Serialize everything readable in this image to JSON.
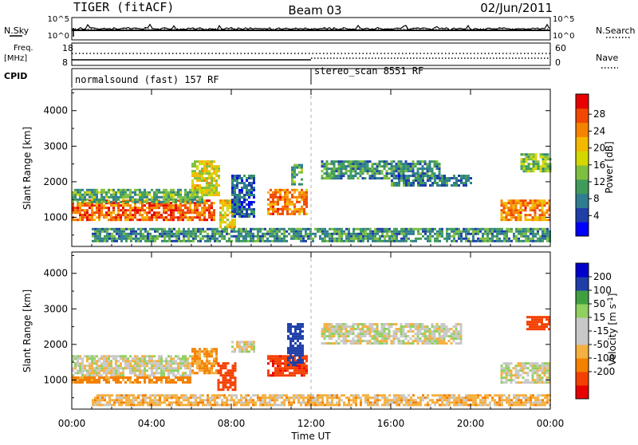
{
  "header": {
    "radar": "TIGER (fitACF)",
    "beam": "Beam 03",
    "date": "02/Jun/2011"
  },
  "status": {
    "nsky_label": "N.Sky",
    "nsky_ticks": [
      "10^5",
      "10^0"
    ],
    "nsearch_label": "N.Search",
    "nsearch_ticks": [
      "10^5",
      "10^0"
    ],
    "freq_label": "Freq.",
    "freq_unit": "[MHz]",
    "freq_ticks": [
      "18",
      "8"
    ],
    "nave_label": "Nave",
    "nave_ticks": [
      "60",
      "0"
    ],
    "cpid_label": "CPID",
    "cpid_segments": [
      {
        "label": "normalsound (fast) 157 RF",
        "start_ut": 0
      },
      {
        "label": "stereo_scan 8551 RF",
        "start_ut": 12
      }
    ]
  },
  "chart_data": [
    {
      "type": "heatmap",
      "name": "power",
      "ylabel": "Slant Range [km]",
      "xlabel": "Time UT",
      "x_ticks": [
        "00:00",
        "04:00",
        "08:00",
        "12:00",
        "16:00",
        "20:00",
        "00:00"
      ],
      "x_range_ut_hours": [
        0,
        24
      ],
      "y_ticks": [
        1000,
        2000,
        3000,
        4000
      ],
      "y_range_km": [
        180,
        4600
      ],
      "colorbar": {
        "label": "Power [dB]",
        "ticks": [
          "28",
          "24",
          "20",
          "16",
          "12",
          "8",
          "4"
        ],
        "colors": [
          "#0000ff",
          "#1f3ea8",
          "#2f7d8f",
          "#3f9c5a",
          "#7fbf3f",
          "#d4d800",
          "#f4b800",
          "#f48400",
          "#f04800",
          "#e80000"
        ]
      },
      "regions": [
        {
          "t0": 0.0,
          "t1": 7.2,
          "r0": 900,
          "r1": 1500,
          "level": 28
        },
        {
          "t0": 0.0,
          "t1": 6.5,
          "r0": 1450,
          "r1": 1800,
          "level": 14
        },
        {
          "t0": 6.0,
          "t1": 7.4,
          "r0": 1600,
          "r1": 2600,
          "level": 20
        },
        {
          "t0": 7.4,
          "t1": 8.2,
          "r0": 700,
          "r1": 1500,
          "level": 22
        },
        {
          "t0": 8.0,
          "t1": 9.2,
          "r0": 1000,
          "r1": 2200,
          "level": 8
        },
        {
          "t0": 9.8,
          "t1": 11.8,
          "r0": 1100,
          "r1": 1800,
          "level": 26
        },
        {
          "t0": 11.0,
          "t1": 11.6,
          "r0": 1900,
          "r1": 2500,
          "level": 14
        },
        {
          "t0": 12.5,
          "t1": 18.5,
          "r0": 2100,
          "r1": 2600,
          "level": 12
        },
        {
          "t0": 16.0,
          "t1": 20.0,
          "r0": 1900,
          "r1": 2200,
          "level": 10
        },
        {
          "t0": 21.5,
          "t1": 24.0,
          "r0": 900,
          "r1": 1500,
          "level": 26
        },
        {
          "t0": 22.5,
          "t1": 24.0,
          "r0": 2300,
          "r1": 2800,
          "level": 16
        },
        {
          "t0": 1.0,
          "t1": 24.0,
          "r0": 300,
          "r1": 700,
          "level": 12
        }
      ]
    },
    {
      "type": "heatmap",
      "name": "velocity",
      "ylabel": "Slant Range [km]",
      "xlabel": "Time UT",
      "x_ticks": [
        "00:00",
        "04:00",
        "08:00",
        "12:00",
        "16:00",
        "20:00",
        "00:00"
      ],
      "x_range_ut_hours": [
        0,
        24
      ],
      "y_ticks": [
        1000,
        2000,
        3000,
        4000
      ],
      "y_range_km": [
        180,
        4600
      ],
      "colorbar": {
        "label": "Velocity [m s",
        "label_sup": "-1",
        "ticks": [
          "200",
          "100",
          "50",
          "15",
          "-15",
          "-50",
          "-100",
          "-200"
        ],
        "colors": [
          "#e80000",
          "#f44000",
          "#f48000",
          "#f4b040",
          "#c8c8c8",
          "#c8c8c8",
          "#8fd060",
          "#3fa03f",
          "#1f3ea8",
          "#0000cc"
        ]
      },
      "regions": [
        {
          "t0": 0.0,
          "t1": 6.0,
          "r0": 1100,
          "r1": 1700,
          "level": 0
        },
        {
          "t0": 0.0,
          "t1": 6.0,
          "r0": 900,
          "r1": 1100,
          "level": -70
        },
        {
          "t0": 6.0,
          "t1": 7.3,
          "r0": 1200,
          "r1": 1900,
          "level": -60
        },
        {
          "t0": 7.3,
          "t1": 8.2,
          "r0": 700,
          "r1": 1500,
          "level": -150
        },
        {
          "t0": 8.0,
          "t1": 9.2,
          "r0": 1800,
          "r1": 2100,
          "level": 0
        },
        {
          "t0": 9.8,
          "t1": 11.8,
          "r0": 1100,
          "r1": 1700,
          "level": -180
        },
        {
          "t0": 10.8,
          "t1": 11.6,
          "r0": 1400,
          "r1": 2600,
          "level": 150
        },
        {
          "t0": 12.5,
          "t1": 19.5,
          "r0": 2000,
          "r1": 2600,
          "level": 0
        },
        {
          "t0": 21.5,
          "t1": 24.0,
          "r0": 900,
          "r1": 1500,
          "level": 0
        },
        {
          "t0": 22.8,
          "t1": 24.0,
          "r0": 2400,
          "r1": 2800,
          "level": -150
        },
        {
          "t0": 1.0,
          "t1": 24.0,
          "r0": 300,
          "r1": 600,
          "level": -30
        }
      ]
    }
  ]
}
